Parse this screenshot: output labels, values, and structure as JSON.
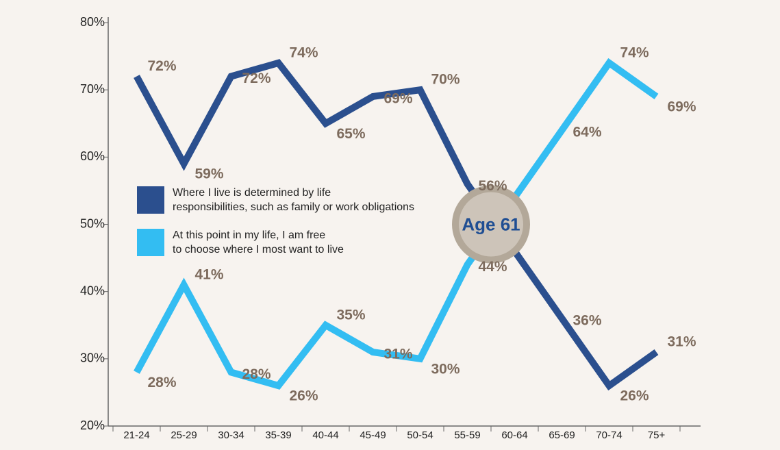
{
  "chart_data": {
    "type": "line",
    "categories": [
      "21-24",
      "25-29",
      "30-34",
      "35-39",
      "40-44",
      "45-49",
      "50-54",
      "55-59",
      "60-64",
      "65-69",
      "70-74",
      "75+"
    ],
    "series": [
      {
        "name": "Where I live is determined by life responsibilities, such as family or work obligations",
        "color": "#2b4f8e",
        "values": [
          72,
          59,
          72,
          74,
          65,
          69,
          70,
          56,
          46,
          36,
          26,
          31
        ],
        "value_labels": [
          "72%",
          "59%",
          "72%",
          "74%",
          "65%",
          "69%",
          "70%",
          "56%",
          null,
          "36%",
          "26%",
          "31%"
        ]
      },
      {
        "name": "At this point in my life, I am free to choose where I most want to live",
        "color": "#33bdf2",
        "values": [
          28,
          41,
          28,
          26,
          35,
          31,
          30,
          44,
          54,
          64,
          74,
          69
        ],
        "value_labels": [
          "28%",
          "41%",
          "28%",
          "26%",
          "35%",
          "31%",
          "30%",
          "44%",
          null,
          "64%",
          "74%",
          "69%"
        ]
      }
    ],
    "ylim": [
      20,
      80
    ],
    "yticks": [
      {
        "value": 20,
        "label": "20%"
      },
      {
        "value": 30,
        "label": "30%"
      },
      {
        "value": 40,
        "label": "40%"
      },
      {
        "value": 50,
        "label": "50%"
      },
      {
        "value": 60,
        "label": "60%"
      },
      {
        "value": 70,
        "label": "70%"
      },
      {
        "value": 80,
        "label": "80%"
      }
    ],
    "annotation": "Age 61"
  }
}
